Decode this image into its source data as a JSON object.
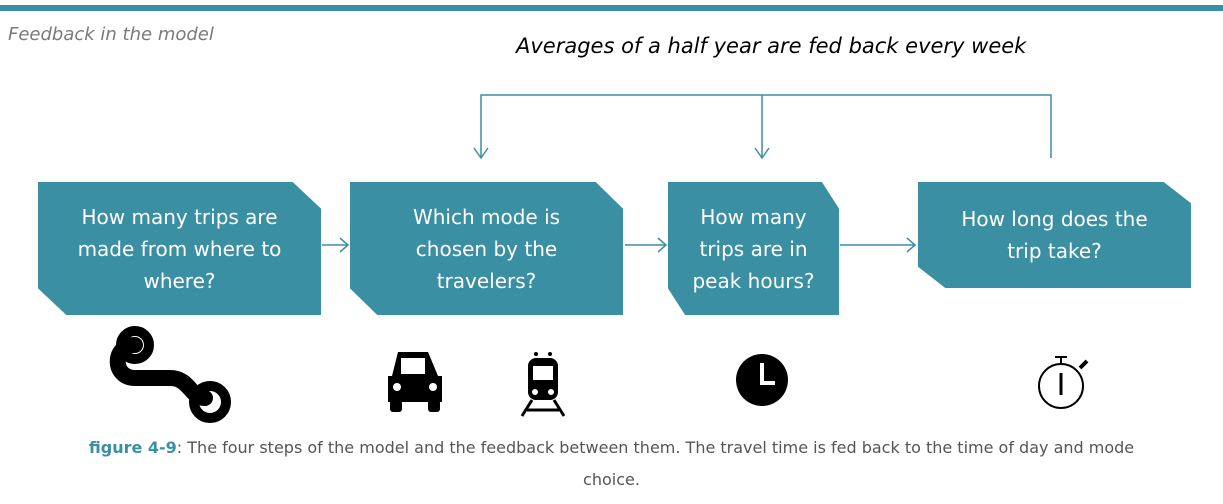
{
  "header": {
    "title": "Feedback in the model",
    "feedback_note": "Averages of a half year are fed back every week"
  },
  "steps": [
    {
      "label": "How many trips are made from where to where?"
    },
    {
      "label": "Which mode is chosen by the travelers?"
    },
    {
      "label": "How many trips are in peak hours?"
    },
    {
      "label": "How long does the trip take?"
    }
  ],
  "caption": {
    "label": "figure 4-9",
    "text": ": The four steps of the model and the feedback between them. The travel time is fed back to the time of day and mode choice."
  }
}
